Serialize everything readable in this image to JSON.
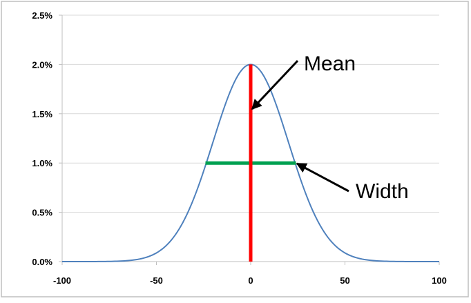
{
  "chart_data": {
    "type": "line",
    "title": "",
    "xlabel": "",
    "ylabel": "",
    "xlim": [
      -100,
      100
    ],
    "ylim": [
      0,
      0.025
    ],
    "x_ticks": [
      -100,
      -50,
      0,
      50,
      100
    ],
    "x_tick_labels": [
      "-100",
      "-50",
      "0",
      "50",
      "100"
    ],
    "y_ticks": [
      0,
      0.005,
      0.01,
      0.015,
      0.02,
      0.025
    ],
    "y_tick_labels": [
      "0.0%",
      "0.5%",
      "1.0%",
      "1.5%",
      "2.0%",
      "2.5%"
    ],
    "grid": "horizontal",
    "legend": "none",
    "series": [
      {
        "color": "#4f81bd",
        "x": [
          -100,
          -90,
          -80,
          -70,
          -60,
          -50,
          -45,
          -40,
          -35,
          -30,
          -25,
          -20,
          -15,
          -10,
          -5,
          0,
          5,
          10,
          15,
          20,
          25,
          30,
          35,
          40,
          45,
          50,
          60,
          70,
          80,
          90,
          100
        ],
        "y": [
          0.0,
          0.0,
          0.0,
          1e-05,
          6e-05,
          0.00039,
          0.00084,
          0.00166,
          0.00296,
          0.00483,
          0.0072,
          0.00982,
          0.01225,
          0.01696,
          0.01925,
          0.02,
          0.01925,
          0.01696,
          0.01225,
          0.00982,
          0.0072,
          0.00483,
          0.00296,
          0.00166,
          0.00084,
          0.00039,
          6e-05,
          1e-05,
          0.0,
          0.0,
          0.0
        ]
      }
    ],
    "annotations": [
      {
        "label": "Mean",
        "kind": "vertical-line",
        "color": "#ff0000",
        "x": 0,
        "y_from": 0,
        "y_to": 0.02
      },
      {
        "label": "Width",
        "kind": "horizontal-line",
        "color": "#00a050",
        "y": 0.01,
        "x_from": -24,
        "x_to": 24
      }
    ]
  }
}
